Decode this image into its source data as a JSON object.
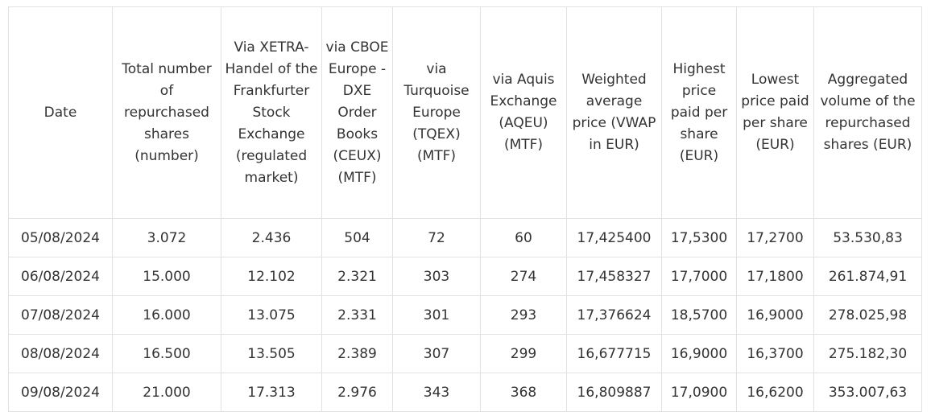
{
  "table": {
    "header": [
      "Date",
      "Total number of repurchased shares (number)",
      "Via XETRA-Handel of the Frankfurter Stock Exchange (regulated market)",
      "via CBOE Europe - DXE Order Books (CEUX) (MTF)",
      "via Turquoise Europe (TQEX) (MTF)",
      "via Aquis Exchange (AQEU) (MTF)",
      "Weighted average price (VWAP in EUR)",
      "Highest price paid per share (EUR)",
      "Lowest price paid per share (EUR)",
      "Aggregated volume of the repurchased shares (EUR)"
    ],
    "rows": [
      [
        "05/08/2024",
        "3.072",
        "2.436",
        "504",
        "72",
        "60",
        "17,425400",
        "17,5300",
        "17,2700",
        "53.530,83"
      ],
      [
        "06/08/2024",
        "15.000",
        "12.102",
        "2.321",
        "303",
        "274",
        "17,458327",
        "17,7000",
        "17,1800",
        "261.874,91"
      ],
      [
        "07/08/2024",
        "16.000",
        "13.075",
        "2.331",
        "301",
        "293",
        "17,376624",
        "18,5700",
        "16,9000",
        "278.025,98"
      ],
      [
        "08/08/2024",
        "16.500",
        "13.505",
        "2.389",
        "307",
        "299",
        "16,677715",
        "16,9000",
        "16,3700",
        "275.182,30"
      ],
      [
        "09/08/2024",
        "21.000",
        "17.313",
        "2.976",
        "343",
        "368",
        "16,809887",
        "17,0900",
        "16,6200",
        "353.007,63"
      ]
    ]
  }
}
